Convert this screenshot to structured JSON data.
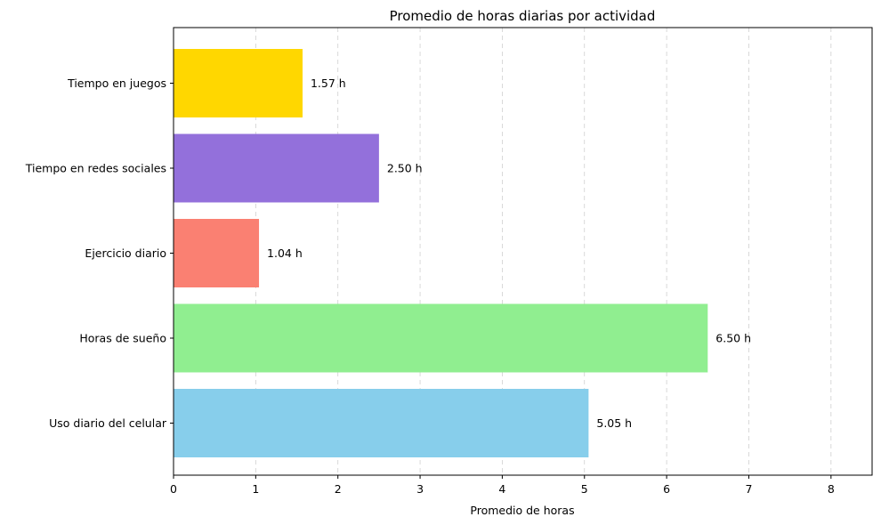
{
  "chart_data": {
    "type": "bar",
    "orientation": "horizontal",
    "title": "Promedio de horas diarias por actividad",
    "xlabel": "Promedio de horas",
    "ylabel": "",
    "xlim": [
      0,
      8.5
    ],
    "x_ticks": [
      0,
      1,
      2,
      3,
      4,
      5,
      6,
      7,
      8
    ],
    "grid": "x-dashed",
    "categories": [
      "Uso diario del celular",
      "Horas de sueño",
      "Ejercicio diario",
      "Tiempo en redes sociales",
      "Tiempo en juegos"
    ],
    "values": [
      5.05,
      6.5,
      1.04,
      2.5,
      1.57
    ],
    "data_labels": [
      "5.05 h",
      "6.50 h",
      "1.04 h",
      "2.50 h",
      "1.57 h"
    ],
    "colors": [
      "#87ceeb",
      "#90ee90",
      "#fa8072",
      "#9370db",
      "#ffd700"
    ]
  }
}
